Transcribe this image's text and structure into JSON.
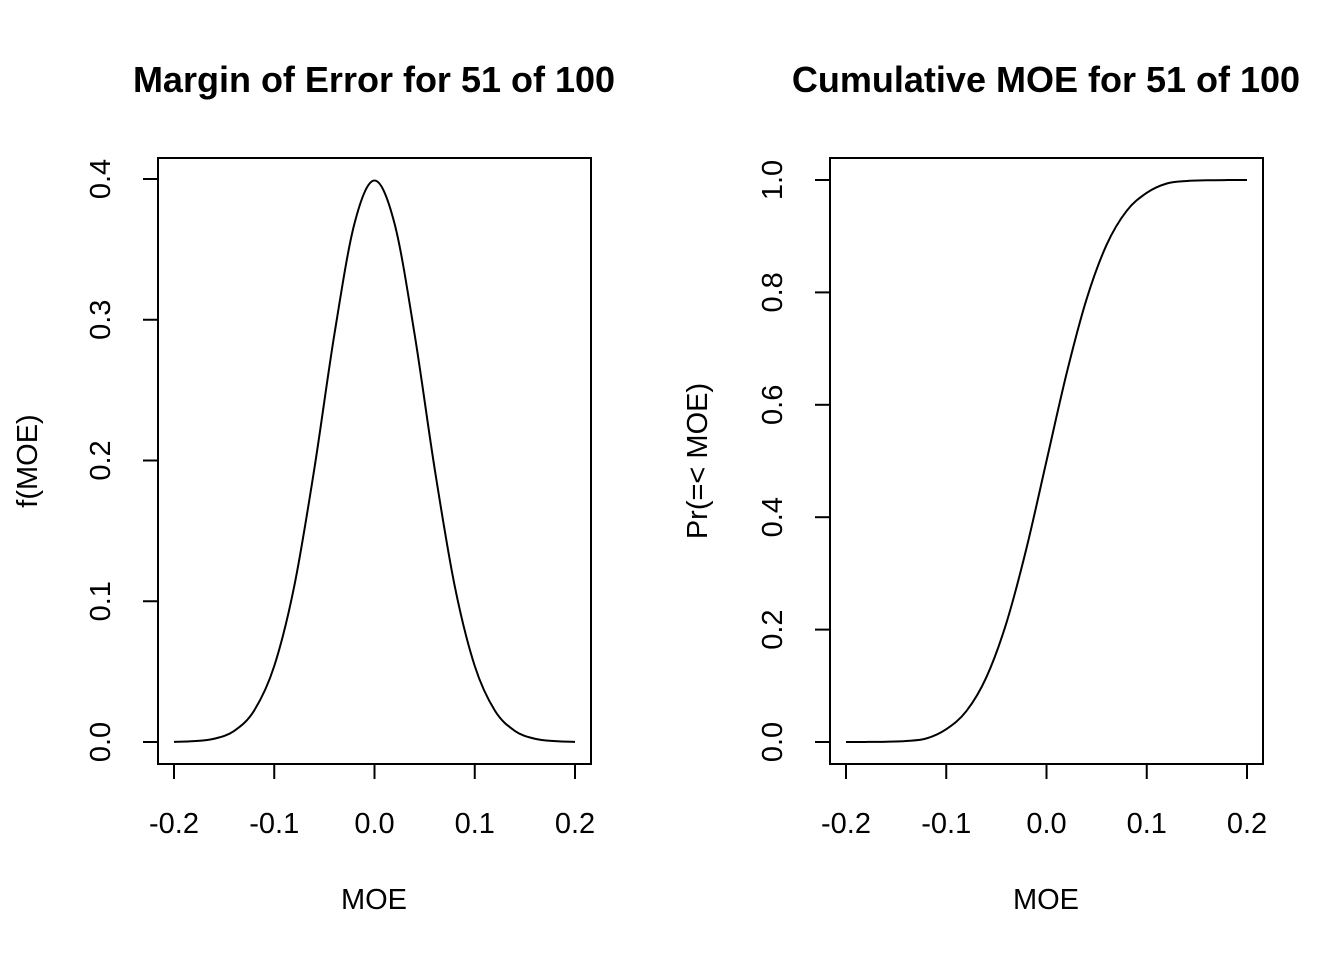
{
  "chart_data": [
    {
      "type": "line",
      "title": "Margin of Error for 51 of 100",
      "xlabel": "MOE",
      "ylabel": "f(MOE)",
      "xlim": [
        -0.2,
        0.2
      ],
      "ylim": [
        0.0,
        0.4
      ],
      "xticks": [
        "-0.2",
        "-0.1",
        "0.0",
        "0.1",
        "0.2"
      ],
      "yticks": [
        "0.0",
        "0.1",
        "0.2",
        "0.3",
        "0.4"
      ],
      "grid": false,
      "x": [
        -0.2,
        -0.18,
        -0.16,
        -0.14,
        -0.12,
        -0.1,
        -0.08,
        -0.06,
        -0.04,
        -0.02,
        0.0,
        0.02,
        0.04,
        0.06,
        0.08,
        0.1,
        0.12,
        0.14,
        0.16,
        0.18,
        0.2
      ],
      "y": [
        0.0001,
        0.0006,
        0.0023,
        0.0079,
        0.0224,
        0.054,
        0.1109,
        0.1942,
        0.2897,
        0.3683,
        0.3989,
        0.3683,
        0.2897,
        0.1942,
        0.1109,
        0.054,
        0.0224,
        0.0079,
        0.0023,
        0.0006,
        0.0001
      ]
    },
    {
      "type": "line",
      "title": "Cumulative MOE for 51 of 100",
      "xlabel": "MOE",
      "ylabel": "Pr(=< MOE)",
      "xlim": [
        -0.2,
        0.2
      ],
      "ylim": [
        0.0,
        1.0
      ],
      "xticks": [
        "-0.2",
        "-0.1",
        "0.0",
        "0.1",
        "0.2"
      ],
      "yticks": [
        "0.0",
        "0.2",
        "0.4",
        "0.6",
        "0.8",
        "1.0"
      ],
      "grid": false,
      "x": [
        -0.2,
        -0.18,
        -0.16,
        -0.14,
        -0.12,
        -0.1,
        -0.08,
        -0.06,
        -0.04,
        -0.02,
        0.0,
        0.02,
        0.04,
        0.06,
        0.08,
        0.1,
        0.12,
        0.14,
        0.16,
        0.18,
        0.2
      ],
      "y": [
        0.0,
        0.0001,
        0.0005,
        0.0017,
        0.0062,
        0.0228,
        0.0548,
        0.1151,
        0.2119,
        0.3446,
        0.5,
        0.6554,
        0.7881,
        0.8849,
        0.9452,
        0.9772,
        0.9938,
        0.9983,
        0.9995,
        0.9999,
        1.0
      ]
    }
  ]
}
